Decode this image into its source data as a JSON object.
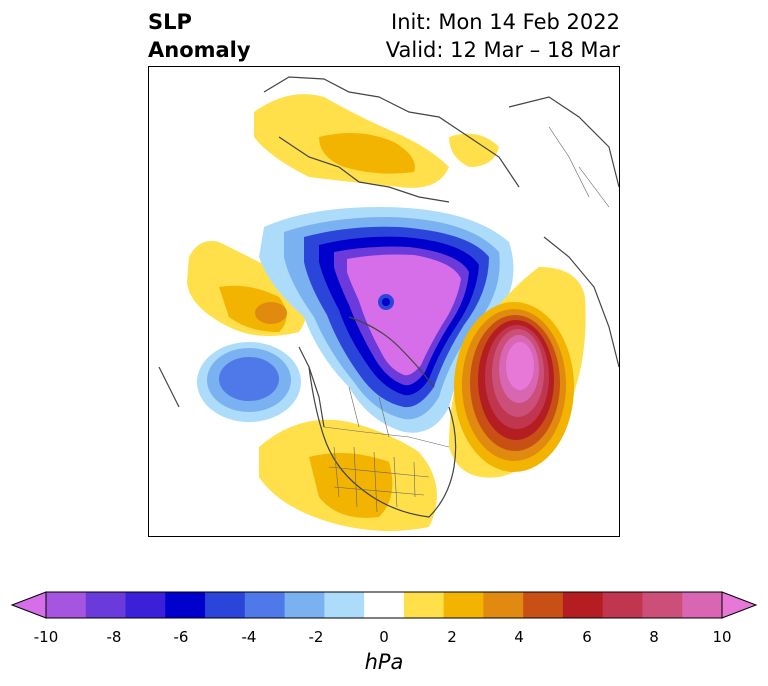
{
  "header": {
    "title_line1": "SLP",
    "title_line2": "Anomaly",
    "init": "Init: Mon 14 Feb 2022",
    "valid": "Valid: 12 Mar – 18 Mar"
  },
  "colorbar": {
    "units": "hPa",
    "tick_labels": [
      "-10",
      "-8",
      "-6",
      "-4",
      "-2",
      "0",
      "2",
      "4",
      "6",
      "8",
      "10"
    ],
    "colors": [
      "#d56ee8",
      "#a655e0",
      "#6b3adb",
      "#3c1fd8",
      "#0000cc",
      "#2b45db",
      "#4f79e8",
      "#7ab1f0",
      "#acdcfa",
      "#ffffff",
      "#ffdf4a",
      "#f2b400",
      "#e08a10",
      "#c85014",
      "#b41e22",
      "#c0364f",
      "#cc4f7a",
      "#d866b2",
      "#e878d8"
    ],
    "range": [
      -10,
      10
    ],
    "step": 1
  },
  "map": {
    "projection": "polar stereographic, North America / Arctic",
    "features": [
      "coastlines",
      "country borders",
      "US state borders",
      "Canadian province borders"
    ]
  }
}
